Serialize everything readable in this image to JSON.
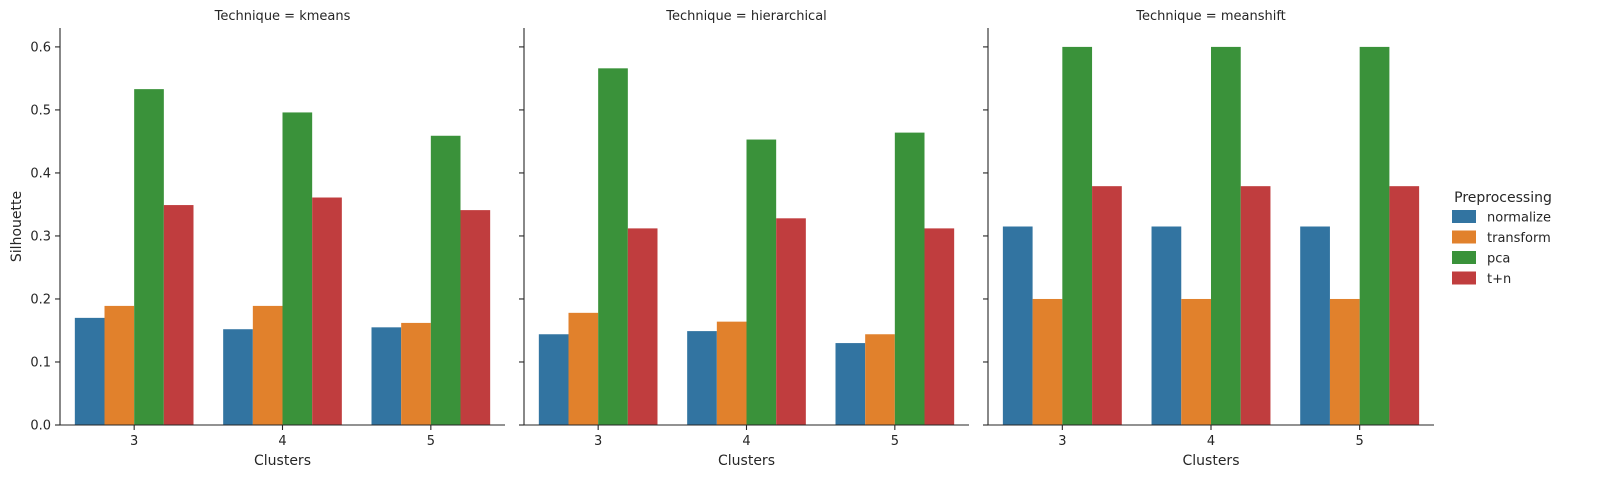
{
  "chart_data": {
    "type": "bar",
    "ylabel": "Silhouette",
    "xlabel": "Clusters",
    "ylim": [
      0,
      0.63
    ],
    "yticks": [
      0.0,
      0.1,
      0.2,
      0.3,
      0.4,
      0.5,
      0.6
    ],
    "ytick_labels": [
      "0.0",
      "0.1",
      "0.2",
      "0.3",
      "0.4",
      "0.5",
      "0.6"
    ],
    "categories": [
      "3",
      "4",
      "5"
    ],
    "grid": false,
    "sharey": true,
    "legend": {
      "title": "Preprocessing",
      "placement": "right",
      "entries": [
        "normalize",
        "transform",
        "pca",
        "t+n"
      ]
    },
    "colors": {
      "normalize": "#3274a1",
      "transform": "#e1812c",
      "pca": "#3a923a",
      "t+n": "#c03d3e"
    },
    "panels": [
      {
        "title": "Technique = kmeans",
        "series": [
          {
            "name": "normalize",
            "values": [
              0.17,
              0.152,
              0.155
            ]
          },
          {
            "name": "transform",
            "values": [
              0.189,
              0.189,
              0.162
            ]
          },
          {
            "name": "pca",
            "values": [
              0.533,
              0.496,
              0.459
            ]
          },
          {
            "name": "t+n",
            "values": [
              0.349,
              0.361,
              0.341
            ]
          }
        ]
      },
      {
        "title": "Technique = hierarchical",
        "series": [
          {
            "name": "normalize",
            "values": [
              0.144,
              0.149,
              0.13
            ]
          },
          {
            "name": "transform",
            "values": [
              0.178,
              0.164,
              0.144
            ]
          },
          {
            "name": "pca",
            "values": [
              0.566,
              0.453,
              0.464
            ]
          },
          {
            "name": "t+n",
            "values": [
              0.312,
              0.328,
              0.312
            ]
          }
        ]
      },
      {
        "title": "Technique = meanshift",
        "series": [
          {
            "name": "normalize",
            "values": [
              0.315,
              0.315,
              0.315
            ]
          },
          {
            "name": "transform",
            "values": [
              0.2,
              0.2,
              0.2
            ]
          },
          {
            "name": "pca",
            "values": [
              0.6,
              0.6,
              0.6
            ]
          },
          {
            "name": "t+n",
            "values": [
              0.379,
              0.379,
              0.379
            ]
          }
        ]
      }
    ]
  }
}
